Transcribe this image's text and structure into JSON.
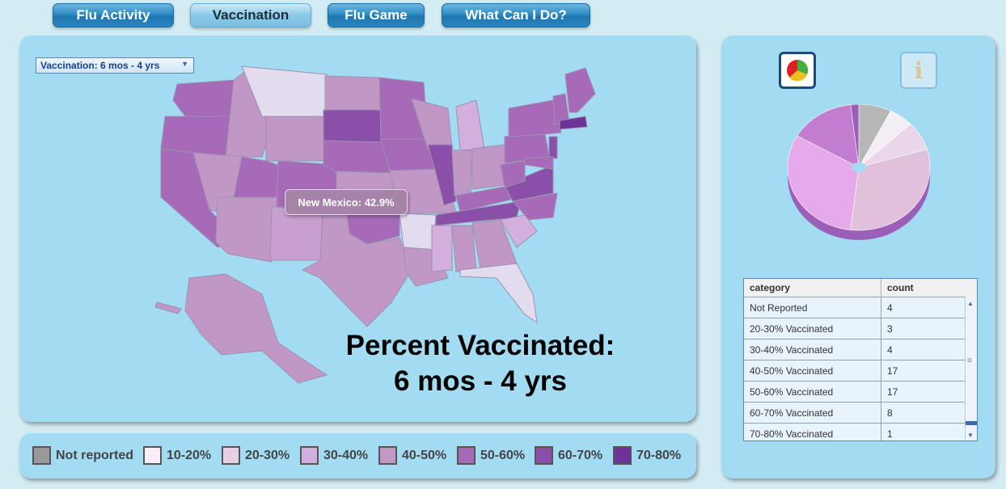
{
  "nav": {
    "items": [
      {
        "label": "Flu Activity"
      },
      {
        "label": "Vaccination"
      },
      {
        "label": "Flu Game"
      },
      {
        "label": "What Can I Do?"
      }
    ],
    "active": "Vaccination"
  },
  "map": {
    "dropdown_value": "Vaccination: 6 mos - 4 yrs",
    "tooltip": "New Mexico: 42.9%",
    "title_line1": "Percent Vaccinated:",
    "title_line2": "6 mos - 4 yrs"
  },
  "legend": [
    {
      "label": "Not reported",
      "color": "#999999"
    },
    {
      "label": "10-20%",
      "color": "#f7eef7"
    },
    {
      "label": "20-30%",
      "color": "#e7cfe4"
    },
    {
      "label": "30-40%",
      "color": "#d3afde"
    },
    {
      "label": "40-50%",
      "color": "#c197c6"
    },
    {
      "label": "50-60%",
      "color": "#a66ab8"
    },
    {
      "label": "60-70%",
      "color": "#8a4fa8"
    },
    {
      "label": "70-80%",
      "color": "#6d3399"
    }
  ],
  "side": {
    "pie_icon": "pie-chart-icon",
    "info_icon": "info-icon",
    "table": {
      "headers": [
        "category",
        "count"
      ],
      "rows": [
        {
          "category": "Not Reported",
          "count": "4"
        },
        {
          "category": "20-30% Vaccinated",
          "count": "3"
        },
        {
          "category": "30-40% Vaccinated",
          "count": "4"
        },
        {
          "category": "40-50% Vaccinated",
          "count": "17"
        },
        {
          "category": "50-60% Vaccinated",
          "count": "17"
        },
        {
          "category": "60-70% Vaccinated",
          "count": "8"
        },
        {
          "category": "70-80% Vaccinated",
          "count": "1"
        }
      ]
    }
  },
  "pie_slices": [
    {
      "category": "Not Reported",
      "count": 4,
      "color": "#b7b7b7"
    },
    {
      "category": "20-30% Vaccinated",
      "count": 3,
      "color": "#f3eef3"
    },
    {
      "category": "30-40% Vaccinated",
      "count": 4,
      "color": "#ead6ea"
    },
    {
      "category": "40-50% Vaccinated",
      "count": 17,
      "color": "#e0c1dc"
    },
    {
      "category": "50-60% Vaccinated",
      "count": 17,
      "color": "#e6a9ea"
    },
    {
      "category": "60-70% Vaccinated",
      "count": 8,
      "color": "#c27cd0"
    },
    {
      "category": "70-80% Vaccinated",
      "count": 1,
      "color": "#9b5fb8"
    }
  ]
}
